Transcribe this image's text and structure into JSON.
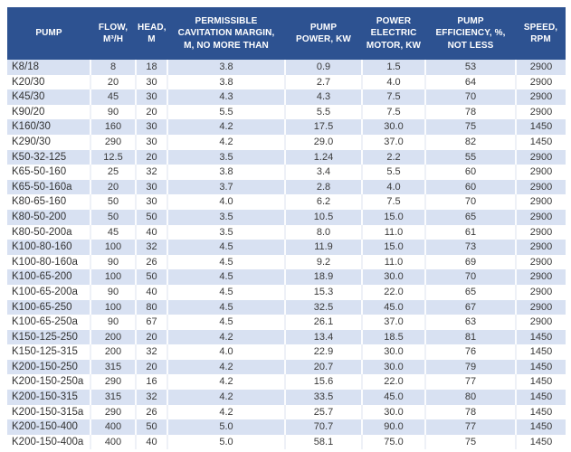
{
  "colors": {
    "header_background": "#2D5291",
    "header_text": "#FFFFFF",
    "row_stripe": "#D8E1F2",
    "row_plain": "#FFFFFF",
    "body_text": "#3A3A3A"
  },
  "table": {
    "columns": [
      {
        "key": "pump",
        "label": "PUMP"
      },
      {
        "key": "flow",
        "label": "FLOW,\nM³/H"
      },
      {
        "key": "head",
        "label": "HEAD,\nM"
      },
      {
        "key": "cav",
        "label": "PERMISSIBLE\nCAVITATION MARGIN,\nM, NO MORE THAN"
      },
      {
        "key": "power",
        "label": "PUMP\nPOWER, KW"
      },
      {
        "key": "motor",
        "label": "POWER\nELECTRIC\nMOTOR, KW"
      },
      {
        "key": "eff",
        "label": "PUMP\nEFFICIENCY, %,\nNOT LESS"
      },
      {
        "key": "speed",
        "label": "SPEED,\nRPM"
      }
    ],
    "rows": [
      {
        "pump": "K8/18",
        "flow": "8",
        "head": "18",
        "cav": "3.8",
        "power": "0.9",
        "motor": "1.5",
        "eff": "53",
        "speed": "2900"
      },
      {
        "pump": "K20/30",
        "flow": "20",
        "head": "30",
        "cav": "3.8",
        "power": "2.7",
        "motor": "4.0",
        "eff": "64",
        "speed": "2900"
      },
      {
        "pump": "K45/30",
        "flow": "45",
        "head": "30",
        "cav": "4.3",
        "power": "4.3",
        "motor": "7.5",
        "eff": "70",
        "speed": "2900"
      },
      {
        "pump": "K90/20",
        "flow": "90",
        "head": "20",
        "cav": "5.5",
        "power": "5.5",
        "motor": "7.5",
        "eff": "78",
        "speed": "2900"
      },
      {
        "pump": "K160/30",
        "flow": "160",
        "head": "30",
        "cav": "4.2",
        "power": "17.5",
        "motor": "30.0",
        "eff": "75",
        "speed": "1450"
      },
      {
        "pump": "K290/30",
        "flow": "290",
        "head": "30",
        "cav": "4.2",
        "power": "29.0",
        "motor": "37.0",
        "eff": "82",
        "speed": "1450"
      },
      {
        "pump": "K50-32-125",
        "flow": "12.5",
        "head": "20",
        "cav": "3.5",
        "power": "1.24",
        "motor": "2.2",
        "eff": "55",
        "speed": "2900"
      },
      {
        "pump": "K65-50-160",
        "flow": "25",
        "head": "32",
        "cav": "3.8",
        "power": "3.4",
        "motor": "5.5",
        "eff": "60",
        "speed": "2900"
      },
      {
        "pump": "K65-50-160a",
        "flow": "20",
        "head": "30",
        "cav": "3.7",
        "power": "2.8",
        "motor": "4.0",
        "eff": "60",
        "speed": "2900"
      },
      {
        "pump": "K80-65-160",
        "flow": "50",
        "head": "30",
        "cav": "4.0",
        "power": "6.2",
        "motor": "7.5",
        "eff": "70",
        "speed": "2900"
      },
      {
        "pump": "K80-50-200",
        "flow": "50",
        "head": "50",
        "cav": "3.5",
        "power": "10.5",
        "motor": "15.0",
        "eff": "65",
        "speed": "2900"
      },
      {
        "pump": "K80-50-200a",
        "flow": "45",
        "head": "40",
        "cav": "3.5",
        "power": "8.0",
        "motor": "11.0",
        "eff": "61",
        "speed": "2900"
      },
      {
        "pump": "K100-80-160",
        "flow": "100",
        "head": "32",
        "cav": "4.5",
        "power": "11.9",
        "motor": "15.0",
        "eff": "73",
        "speed": "2900"
      },
      {
        "pump": "K100-80-160a",
        "flow": "90",
        "head": "26",
        "cav": "4.5",
        "power": "9.2",
        "motor": "11.0",
        "eff": "69",
        "speed": "2900"
      },
      {
        "pump": "K100-65-200",
        "flow": "100",
        "head": "50",
        "cav": "4.5",
        "power": "18.9",
        "motor": "30.0",
        "eff": "70",
        "speed": "2900"
      },
      {
        "pump": "K100-65-200a",
        "flow": "90",
        "head": "40",
        "cav": "4.5",
        "power": "15.3",
        "motor": "22.0",
        "eff": "65",
        "speed": "2900"
      },
      {
        "pump": "K100-65-250",
        "flow": "100",
        "head": "80",
        "cav": "4.5",
        "power": "32.5",
        "motor": "45.0",
        "eff": "67",
        "speed": "2900"
      },
      {
        "pump": "K100-65-250a",
        "flow": "90",
        "head": "67",
        "cav": "4.5",
        "power": "26.1",
        "motor": "37.0",
        "eff": "63",
        "speed": "2900"
      },
      {
        "pump": "K150-125-250",
        "flow": "200",
        "head": "20",
        "cav": "4.2",
        "power": "13.4",
        "motor": "18.5",
        "eff": "81",
        "speed": "1450"
      },
      {
        "pump": "K150-125-315",
        "flow": "200",
        "head": "32",
        "cav": "4.0",
        "power": "22.9",
        "motor": "30.0",
        "eff": "76",
        "speed": "1450"
      },
      {
        "pump": "K200-150-250",
        "flow": "315",
        "head": "20",
        "cav": "4.2",
        "power": "20.7",
        "motor": "30.0",
        "eff": "79",
        "speed": "1450"
      },
      {
        "pump": "K200-150-250a",
        "flow": "290",
        "head": "16",
        "cav": "4.2",
        "power": "15.6",
        "motor": "22.0",
        "eff": "77",
        "speed": "1450"
      },
      {
        "pump": "K200-150-315",
        "flow": "315",
        "head": "32",
        "cav": "4.2",
        "power": "33.5",
        "motor": "45.0",
        "eff": "80",
        "speed": "1450"
      },
      {
        "pump": "K200-150-315a",
        "flow": "290",
        "head": "26",
        "cav": "4.2",
        "power": "25.7",
        "motor": "30.0",
        "eff": "78",
        "speed": "1450"
      },
      {
        "pump": "K200-150-400",
        "flow": "400",
        "head": "50",
        "cav": "5.0",
        "power": "70.7",
        "motor": "90.0",
        "eff": "77",
        "speed": "1450"
      },
      {
        "pump": "K200-150-400a",
        "flow": "400",
        "head": "40",
        "cav": "5.0",
        "power": "58.1",
        "motor": "75.0",
        "eff": "75",
        "speed": "1450"
      }
    ]
  }
}
